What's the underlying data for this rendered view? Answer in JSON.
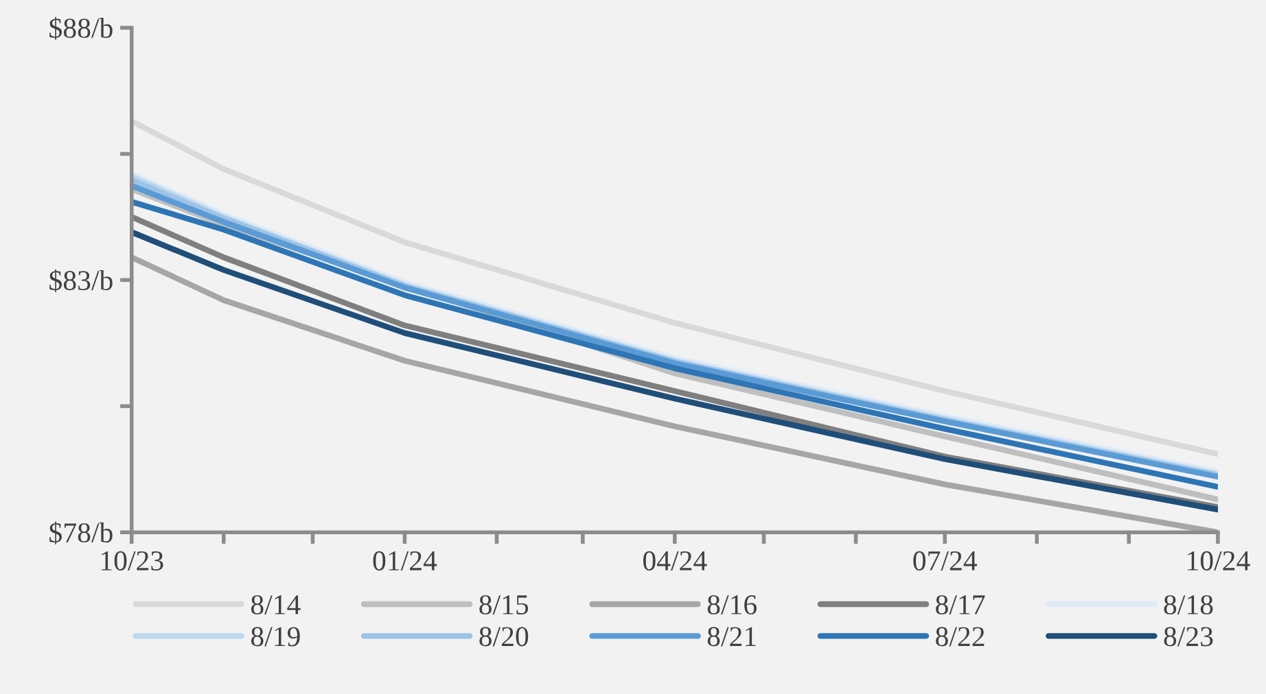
{
  "chart_data": {
    "type": "line",
    "x": [
      "2023-10",
      "2023-11",
      "2024-01",
      "2024-04",
      "2024-07",
      "2024-10"
    ],
    "xlim": [
      "2023-10",
      "2024-10"
    ],
    "xticks": [
      {
        "value": "2023-10",
        "label": "10/23"
      },
      {
        "value": "2023-11",
        "label": null
      },
      {
        "value": "2023-12",
        "label": null
      },
      {
        "value": "2024-01",
        "label": "01/24"
      },
      {
        "value": "2024-02",
        "label": null
      },
      {
        "value": "2024-03",
        "label": null
      },
      {
        "value": "2024-04",
        "label": "04/24"
      },
      {
        "value": "2024-05",
        "label": null
      },
      {
        "value": "2024-06",
        "label": null
      },
      {
        "value": "2024-07",
        "label": "07/24"
      },
      {
        "value": "2024-08",
        "label": null
      },
      {
        "value": "2024-09",
        "label": null
      },
      {
        "value": "2024-10",
        "label": "10/24"
      }
    ],
    "ylim": [
      78,
      88
    ],
    "yticks": [
      {
        "value": 78,
        "label": "$78/b"
      },
      {
        "value": 80.5,
        "label": null
      },
      {
        "value": 83,
        "label": "$83/b"
      },
      {
        "value": 85.5,
        "label": null
      },
      {
        "value": 88,
        "label": "$88/b"
      }
    ],
    "grid": false,
    "legend": "bottom",
    "marker": "none",
    "line_style": "solid",
    "series": [
      {
        "name": "8/14",
        "color": "#d9d9d9",
        "values": [
          86.15,
          85.2,
          83.75,
          82.15,
          80.8,
          79.55
        ]
      },
      {
        "name": "8/15",
        "color": "#bfbfbf",
        "values": [
          84.8,
          84.1,
          82.9,
          81.15,
          79.9,
          78.65
        ]
      },
      {
        "name": "8/16",
        "color": "#a6a6a6",
        "values": [
          83.45,
          82.6,
          81.4,
          80.1,
          78.95,
          78.0
        ]
      },
      {
        "name": "8/17",
        "color": "#7f7f7f",
        "values": [
          84.25,
          83.45,
          82.1,
          80.8,
          79.5,
          78.5
        ]
      },
      {
        "name": "8/18",
        "color": "#deebf7",
        "values": [
          85.1,
          84.3,
          82.95,
          81.45,
          80.3,
          79.2
        ]
      },
      {
        "name": "8/19",
        "color": "#bdd7ee",
        "values": [
          85.05,
          84.25,
          82.9,
          81.4,
          80.25,
          79.15
        ]
      },
      {
        "name": "8/20",
        "color": "#9dc3e6",
        "values": [
          84.98,
          84.22,
          82.88,
          81.38,
          80.22,
          79.13
        ]
      },
      {
        "name": "8/21",
        "color": "#5b9bd5",
        "values": [
          84.87,
          84.15,
          82.85,
          81.35,
          80.2,
          79.1
        ]
      },
      {
        "name": "8/22",
        "color": "#2e75b6",
        "values": [
          84.55,
          84.0,
          82.7,
          81.25,
          80.05,
          78.9
        ]
      },
      {
        "name": "8/23",
        "color": "#1f4e79",
        "values": [
          83.95,
          83.2,
          81.95,
          80.65,
          79.45,
          78.45
        ]
      }
    ]
  }
}
